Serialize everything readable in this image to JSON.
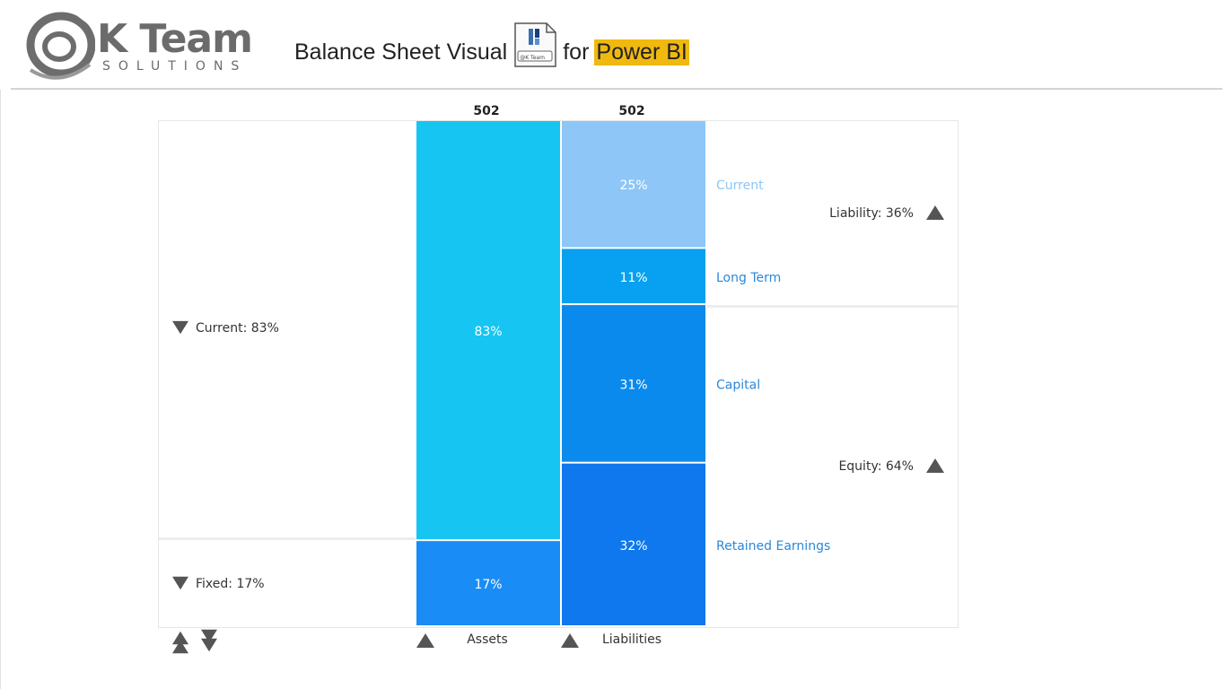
{
  "header": {
    "logo_k": "K Team",
    "logo_solutions": "SOLUTIONS",
    "title_prefix": "Balance Sheet Visual",
    "icon_label": "@K Team",
    "title_for": "for",
    "title_highlight": "Power BI"
  },
  "colors": {
    "highlight": "#f0b90f",
    "current_assets": "#16c5f2",
    "fixed_assets": "#1a8cf6",
    "current_liab": "#8dc6f7",
    "longterm_liab": "#08a0f0",
    "capital": "#0a8aec",
    "retained": "#0f78ee",
    "label_blue": "#2b88d8"
  },
  "chart_data": {
    "type": "bar",
    "totals": {
      "assets": 502,
      "liabilities": 502
    },
    "columns": [
      {
        "name": "Assets",
        "total": 502,
        "segments": [
          {
            "name": "Current",
            "percent": 83,
            "label": "83%"
          },
          {
            "name": "Fixed",
            "percent": 17,
            "label": "17%"
          }
        ]
      },
      {
        "name": "Liabilities",
        "total": 502,
        "segments": [
          {
            "name": "Current",
            "percent": 25,
            "label": "25%"
          },
          {
            "name": "Long Term",
            "percent": 11,
            "label": "11%"
          },
          {
            "name": "Capital",
            "percent": 31,
            "label": "31%"
          },
          {
            "name": "Retained Earnings",
            "percent": 32,
            "label": "32%"
          }
        ]
      }
    ],
    "asset_groups": [
      {
        "label": "Current: 83%",
        "percent": 83
      },
      {
        "label": "Fixed: 17%",
        "percent": 17
      }
    ],
    "liability_groups": [
      {
        "label": "Liability: 36%",
        "percent": 36
      },
      {
        "label": "Equity: 64%",
        "percent": 64
      }
    ],
    "axis_labels": {
      "assets": "Assets",
      "liabilities": "Liabilities"
    },
    "total_labels": {
      "assets": "502",
      "liabilities": "502"
    },
    "segment_names": [
      "Current",
      "Long Term",
      "Capital",
      "Retained Earnings"
    ]
  }
}
